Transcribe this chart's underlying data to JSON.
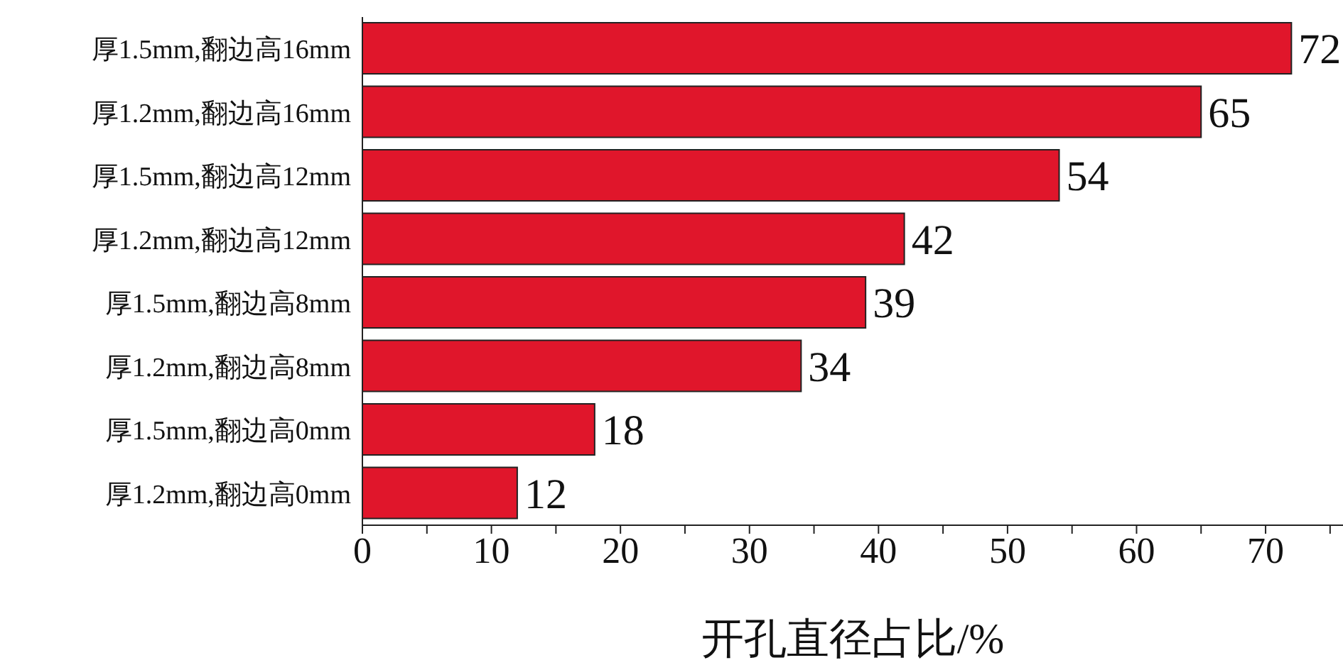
{
  "chart_data": {
    "type": "bar",
    "orientation": "horizontal",
    "xlabel": "开孔直径占比/%",
    "categories": [
      "厚1.5mm,翻边高16mm",
      "厚1.2mm,翻边高16mm",
      "厚1.5mm,翻边高12mm",
      "厚1.2mm,翻边高12mm",
      "厚1.5mm,翻边高8mm",
      "厚1.2mm,翻边高8mm",
      "厚1.5mm,翻边高0mm",
      "厚1.2mm,翻边高0mm"
    ],
    "values": [
      72,
      65,
      54,
      42,
      39,
      34,
      18,
      12
    ],
    "color": "#e0162b",
    "xlim": [
      0,
      76
    ],
    "xticks": [
      0,
      {
        "value": 5,
        "label": null
      },
      10,
      {
        "value": 15,
        "label": null
      },
      20,
      {
        "value": 25,
        "label": null
      },
      30,
      {
        "value": 35,
        "label": null
      },
      40,
      {
        "value": 45,
        "label": null
      },
      50,
      {
        "value": 55,
        "label": null
      },
      60,
      {
        "value": 65,
        "label": null
      },
      70,
      {
        "value": 75,
        "label": null
      }
    ],
    "data_labels": true,
    "grid": false,
    "legend": false
  }
}
